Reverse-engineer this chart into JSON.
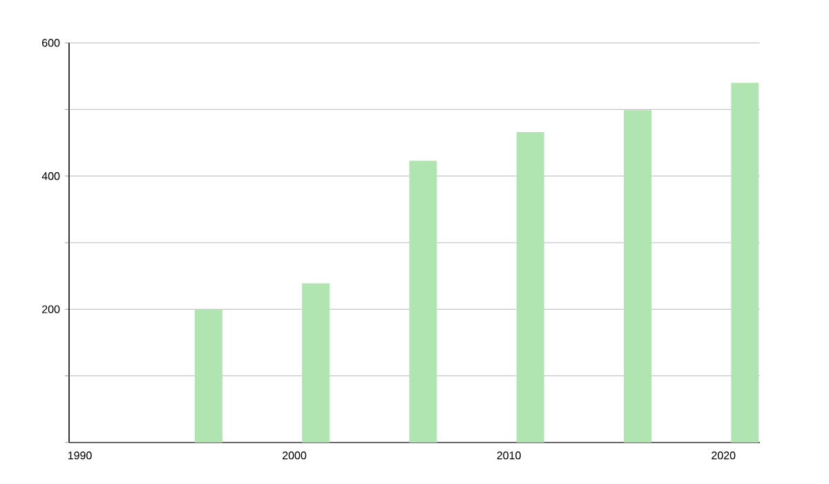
{
  "chart_data": {
    "type": "bar",
    "x": [
      1996,
      2001,
      2006,
      2011,
      2016,
      2021
    ],
    "values": [
      200,
      239,
      423,
      466,
      499,
      540
    ],
    "color": "#b0e4b0",
    "xlim": [
      1989.5,
      2021.7
    ],
    "xticks": [
      1990,
      2000,
      2010,
      2020
    ],
    "ylim": [
      0,
      600
    ],
    "yticks": [
      {
        "value": 0,
        "label": null
      },
      {
        "value": 100,
        "label": null
      },
      200,
      {
        "value": 300,
        "label": null
      },
      400,
      {
        "value": 500,
        "label": null
      },
      600
    ],
    "grid": "y"
  }
}
